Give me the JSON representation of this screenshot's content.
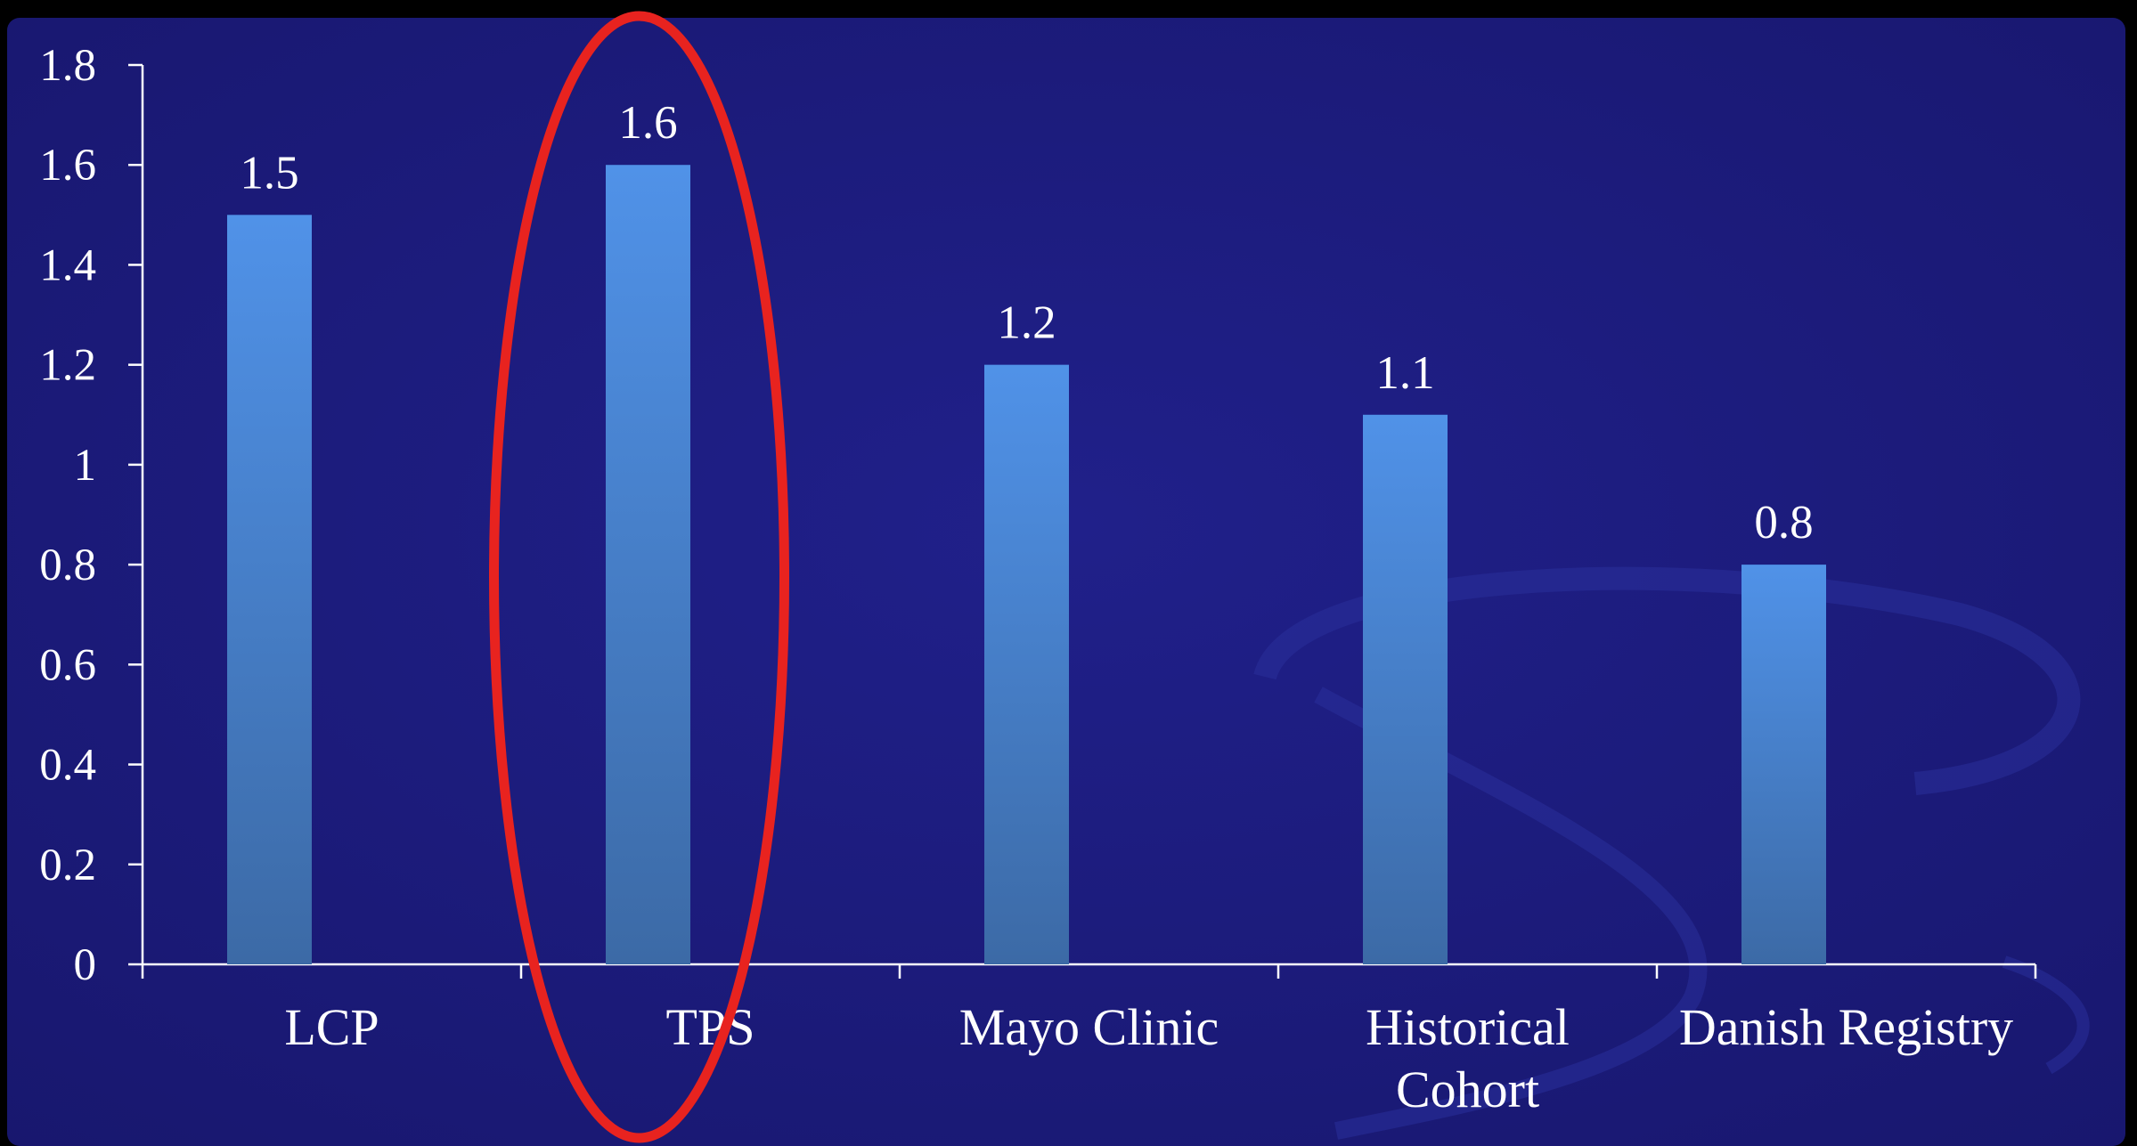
{
  "chart_data": {
    "type": "bar",
    "categories": [
      "LCP",
      "TPS",
      "Mayo Clinic",
      "Historical Cohort",
      "Danish Registry"
    ],
    "category_lines": [
      [
        "LCP"
      ],
      [
        "TPS"
      ],
      [
        "Mayo Clinic"
      ],
      [
        "Historical",
        "Cohort"
      ],
      [
        "Danish Registry"
      ]
    ],
    "values": [
      1.5,
      1.6,
      1.2,
      1.1,
      0.8
    ],
    "data_labels": [
      "1.5",
      "1.6",
      "1.2",
      "1.1",
      "0.8"
    ],
    "y_ticks": [
      "0",
      "0.2",
      "0.4",
      "0.6",
      "0.8",
      "1",
      "1.2",
      "1.4",
      "1.6",
      "1.8"
    ],
    "ylim": [
      0,
      1.8
    ],
    "title": "",
    "xlabel": "",
    "ylabel": "",
    "grid": false,
    "legend": "none",
    "highlight": {
      "category": "TPS",
      "shape": "ellipse",
      "color": "#e8231f"
    }
  },
  "colors": {
    "background": "#1b1a7a",
    "frame": "#000000",
    "bar_top": "#5092e8",
    "bar_bottom": "#3c6aa6",
    "axis": "#ffffff",
    "text": "#ffffff",
    "highlight": "#e8231f"
  }
}
